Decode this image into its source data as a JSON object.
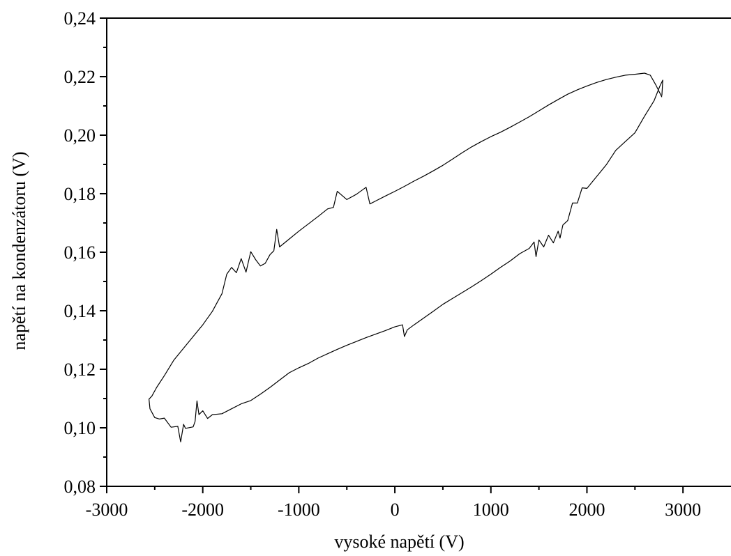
{
  "chart_data": {
    "type": "line",
    "title": "",
    "xlabel": "vysoké napětí (V)",
    "ylabel": "napětí na kondenzátoru (V)",
    "xlim": [
      -3000,
      3500
    ],
    "ylim": [
      0.08,
      0.24
    ],
    "x_ticks": [
      {
        "value": -3000,
        "label": "-3000"
      },
      {
        "value": -2000,
        "label": "-2000"
      },
      {
        "value": -1000,
        "label": "-1000"
      },
      {
        "value": 0,
        "label": "0"
      },
      {
        "value": 1000,
        "label": "1000"
      },
      {
        "value": 2000,
        "label": "2000"
      },
      {
        "value": 3000,
        "label": "3000"
      }
    ],
    "y_ticks": [
      {
        "value": 0.08,
        "label": "0,08"
      },
      {
        "value": 0.1,
        "label": "0,10"
      },
      {
        "value": 0.12,
        "label": "0,12"
      },
      {
        "value": 0.14,
        "label": "0,14"
      },
      {
        "value": 0.16,
        "label": "0,16"
      },
      {
        "value": 0.18,
        "label": "0,18"
      },
      {
        "value": 0.2,
        "label": "0,20"
      },
      {
        "value": 0.22,
        "label": "0,22"
      },
      {
        "value": 0.24,
        "label": "0,24"
      }
    ],
    "x_minor_step": 500,
    "y_minor_step": 0.01,
    "grid": false,
    "legend": "none",
    "line_color": "#000000",
    "series": [
      {
        "x": [
          2780,
          2720,
          2660,
          2600,
          2500,
          2400,
          2300,
          2200,
          2100,
          2000,
          1900,
          1800,
          1700,
          1600,
          1500,
          1400,
          1300,
          1200,
          1100,
          1000,
          900,
          800,
          700,
          600,
          500,
          400,
          300,
          200,
          100,
          0,
          -100,
          -200,
          -260,
          -300,
          -400,
          -500,
          -600,
          -640,
          -700,
          -800,
          -900,
          -1000,
          -1100,
          -1200,
          -1230,
          -1260,
          -1300,
          -1350,
          -1400,
          -1450,
          -1500,
          -1550,
          -1600,
          -1650,
          -1700,
          -1750,
          -1800,
          -1850,
          -1900,
          -2000,
          -2100,
          -2200,
          -2300,
          -2400,
          -2480,
          -2530,
          -2560,
          -2550,
          -2500,
          -2450,
          -2400,
          -2330,
          -2260,
          -2230,
          -2200,
          -2180,
          -2100,
          -2080,
          -2060,
          -2040,
          -2000,
          -1950,
          -1900,
          -1800,
          -1700,
          -1600,
          -1500,
          -1400,
          -1300,
          -1200,
          -1100,
          -1000,
          -900,
          -800,
          -700,
          -600,
          -500,
          -400,
          -300,
          -200,
          -100,
          0,
          80,
          100,
          130,
          200,
          300,
          400,
          500,
          600,
          700,
          800,
          900,
          1000,
          1100,
          1200,
          1300,
          1400,
          1450,
          1470,
          1500,
          1550,
          1600,
          1650,
          1700,
          1720,
          1750,
          1800,
          1850,
          1900,
          1950,
          2000,
          2100,
          2200,
          2300,
          2400,
          2500,
          2600,
          2700,
          2760,
          2790,
          2780
        ],
        "y": [
          0.213,
          0.217,
          0.2205,
          0.2212,
          0.2208,
          0.2205,
          0.2198,
          0.219,
          0.218,
          0.2168,
          0.2155,
          0.214,
          0.2122,
          0.2103,
          0.2083,
          0.2063,
          0.2045,
          0.2027,
          0.201,
          0.1995,
          0.1978,
          0.196,
          0.194,
          0.1918,
          0.1897,
          0.1878,
          0.186,
          0.1843,
          0.1825,
          0.1808,
          0.1792,
          0.1775,
          0.1765,
          0.1822,
          0.1798,
          0.178,
          0.1808,
          0.1753,
          0.1748,
          0.1722,
          0.1697,
          0.1672,
          0.1645,
          0.1618,
          0.1678,
          0.1605,
          0.1592,
          0.1562,
          0.1553,
          0.1575,
          0.1602,
          0.1532,
          0.1578,
          0.153,
          0.1548,
          0.1525,
          0.1458,
          0.1428,
          0.1398,
          0.1352,
          0.1312,
          0.1272,
          0.1232,
          0.1178,
          0.1138,
          0.1108,
          0.1098,
          0.1065,
          0.1035,
          0.103,
          0.1033,
          0.1002,
          0.1005,
          0.0952,
          0.1012,
          0.0998,
          0.1003,
          0.1022,
          0.1092,
          0.1045,
          0.1058,
          0.1032,
          0.1045,
          0.1048,
          0.1065,
          0.1082,
          0.1093,
          0.1115,
          0.1138,
          0.1163,
          0.1188,
          0.1205,
          0.122,
          0.1238,
          0.1253,
          0.1268,
          0.1282,
          0.1295,
          0.1308,
          0.132,
          0.1332,
          0.1345,
          0.1352,
          0.1312,
          0.1335,
          0.1352,
          0.1375,
          0.1398,
          0.1422,
          0.1442,
          0.1462,
          0.1482,
          0.1503,
          0.1525,
          0.1548,
          0.157,
          0.1595,
          0.1613,
          0.1635,
          0.1585,
          0.1642,
          0.1618,
          0.1658,
          0.1632,
          0.1672,
          0.1648,
          0.1693,
          0.1708,
          0.1768,
          0.1768,
          0.182,
          0.1818,
          0.1858,
          0.1898,
          0.1948,
          0.1978,
          0.2008,
          0.2065,
          0.2118,
          0.2168,
          0.2188,
          0.2135
        ]
      }
    ]
  }
}
